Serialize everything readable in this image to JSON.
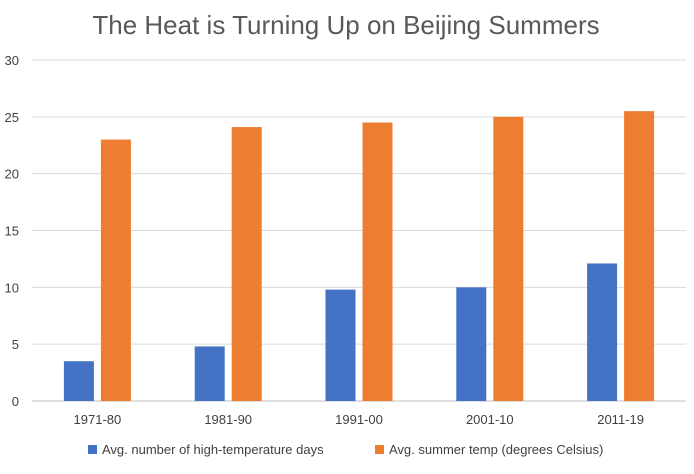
{
  "chart_data": {
    "type": "bar",
    "title": "The Heat is Turning Up on Beijing Summers",
    "categories": [
      "1971-80",
      "1981-90",
      "1991-00",
      "2001-10",
      "2011-19"
    ],
    "series": [
      {
        "name": "Avg. number of high-temperature days",
        "values": [
          3.5,
          4.8,
          9.8,
          10.0,
          12.1
        ],
        "color": "#4472C4"
      },
      {
        "name": "Avg. summer temp (degrees Celsius)",
        "values": [
          23.0,
          24.1,
          24.5,
          25.0,
          25.5
        ],
        "color": "#ED7D31"
      }
    ],
    "ylim": [
      0,
      30
    ],
    "yticks": [
      "0",
      "5",
      "10",
      "15",
      "20",
      "25",
      "30"
    ],
    "grid": true,
    "legend_position": "bottom",
    "xlabel": "",
    "ylabel": ""
  }
}
